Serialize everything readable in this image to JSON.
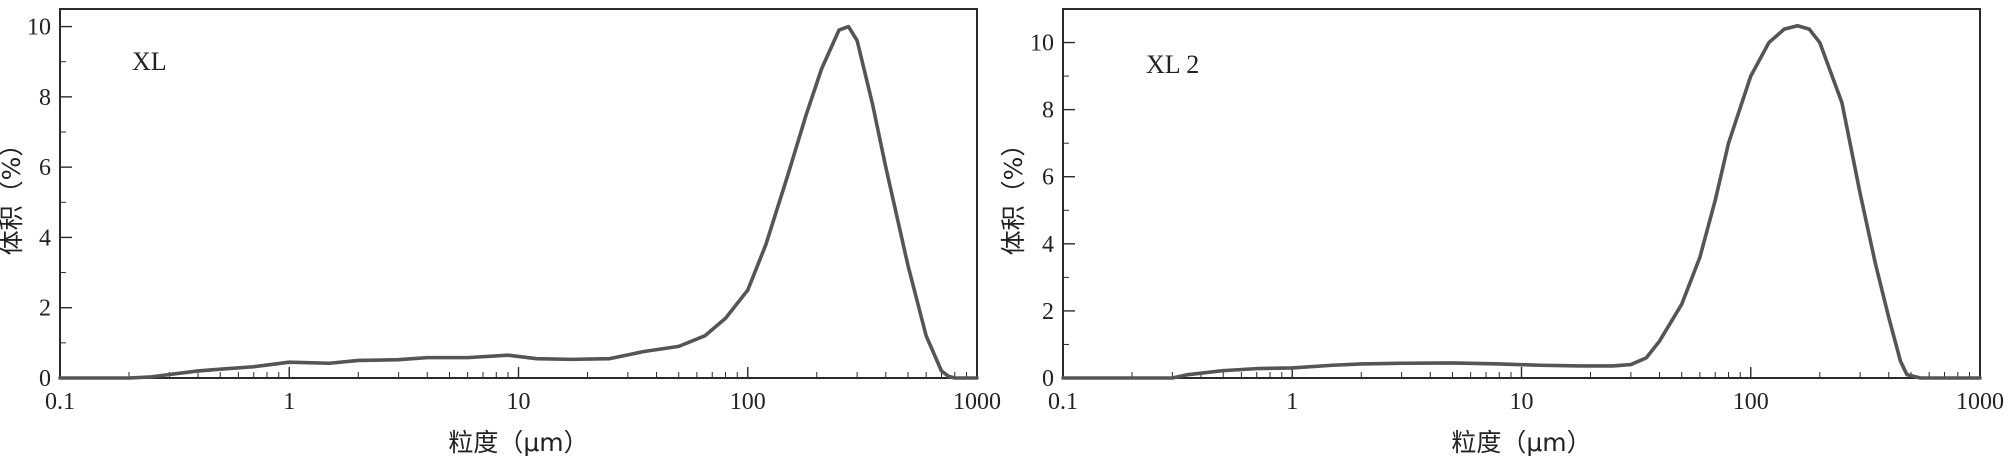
{
  "chart_data": [
    {
      "type": "line",
      "title": "",
      "annotation": "XL",
      "xlabel": "粒度（μm）",
      "ylabel": "体积（%）",
      "x_scale": "log",
      "xlim": [
        0.1,
        1000
      ],
      "ylim": [
        0,
        10.5
      ],
      "x_ticks": [
        "0.1",
        "1",
        "10",
        "100",
        "1000"
      ],
      "y_ticks": [
        "0",
        "2",
        "4",
        "6",
        "8",
        "10"
      ],
      "series": [
        {
          "color": "#555555",
          "x": [
            0.1,
            0.2,
            0.25,
            0.3,
            0.4,
            0.5,
            0.7,
            1,
            1.5,
            2,
            3,
            4,
            6,
            9,
            12,
            17,
            25,
            35,
            50,
            65,
            80,
            100,
            120,
            150,
            180,
            210,
            250,
            275,
            300,
            350,
            400,
            500,
            600,
            700,
            750,
            800,
            900,
            1000
          ],
          "y": [
            0,
            0,
            0.03,
            0.1,
            0.2,
            0.25,
            0.32,
            0.45,
            0.42,
            0.5,
            0.52,
            0.58,
            0.58,
            0.65,
            0.55,
            0.53,
            0.55,
            0.75,
            0.9,
            1.2,
            1.7,
            2.5,
            3.8,
            5.8,
            7.5,
            8.8,
            9.9,
            10.0,
            9.6,
            7.8,
            6.0,
            3.2,
            1.2,
            0.2,
            0.05,
            0,
            0,
            0
          ]
        }
      ]
    },
    {
      "type": "line",
      "title": "",
      "annotation": "XL 2",
      "xlabel": "粒度（μm）",
      "ylabel": "体积（%）",
      "x_scale": "log",
      "xlim": [
        0.1,
        1000
      ],
      "ylim": [
        0,
        11
      ],
      "x_ticks": [
        "0.1",
        "1",
        "10",
        "100",
        "1000"
      ],
      "y_ticks": [
        "0",
        "2",
        "4",
        "6",
        "8",
        "10"
      ],
      "series": [
        {
          "color": "#555555",
          "x": [
            0.1,
            0.3,
            0.35,
            0.5,
            0.7,
            1,
            1.5,
            2,
            3,
            5,
            8,
            12,
            18,
            25,
            30,
            35,
            40,
            50,
            60,
            70,
            80,
            100,
            120,
            140,
            160,
            180,
            200,
            250,
            300,
            350,
            400,
            450,
            480,
            550,
            600,
            1000
          ],
          "y": [
            0,
            0,
            0.1,
            0.22,
            0.28,
            0.3,
            0.38,
            0.42,
            0.44,
            0.45,
            0.42,
            0.38,
            0.36,
            0.36,
            0.4,
            0.6,
            1.1,
            2.2,
            3.6,
            5.3,
            7.0,
            9.0,
            10.0,
            10.4,
            10.5,
            10.4,
            10.0,
            8.2,
            5.5,
            3.4,
            1.8,
            0.5,
            0.1,
            0,
            0,
            0
          ]
        }
      ]
    }
  ]
}
